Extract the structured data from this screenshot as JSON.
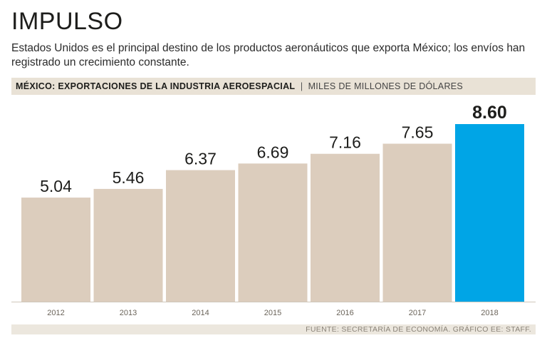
{
  "header": {
    "title": "IMPULSO",
    "subtitle": "Estados Unidos es el principal destino de los productos aeronáuticos que exporta México; los envíos han registrado un crecimiento constante."
  },
  "chart_header": {
    "main": "MÉXICO: EXPORTACIONES DE LA INDUSTRIA AEROESPACIAL",
    "separator": "|",
    "unit": "MILES DE MILLONES DE DÓLARES"
  },
  "colors": {
    "bar": "#dccdbd",
    "highlight": "#00a5e6",
    "axis": "#cfc7bb"
  },
  "chart_data": {
    "type": "bar",
    "title": "MÉXICO: EXPORTACIONES DE LA INDUSTRIA AEROESPACIAL",
    "ylabel": "MILES DE MILLONES DE DÓLARES",
    "xlabel": "",
    "categories": [
      "2012",
      "2013",
      "2014",
      "2015",
      "2016",
      "2017",
      "2018"
    ],
    "values": [
      5.04,
      5.46,
      6.37,
      6.69,
      7.16,
      7.65,
      8.6
    ],
    "value_labels": [
      "5.04",
      "5.46",
      "6.37",
      "6.69",
      "7.16",
      "7.65",
      "8.60"
    ],
    "highlight_index": 6,
    "ylim": [
      0,
      8.6
    ],
    "grid": false
  },
  "footer": {
    "source": "FUENTE: SECRETARÍA DE ECONOMÍA. GRÁFICO EE: STAFF."
  }
}
